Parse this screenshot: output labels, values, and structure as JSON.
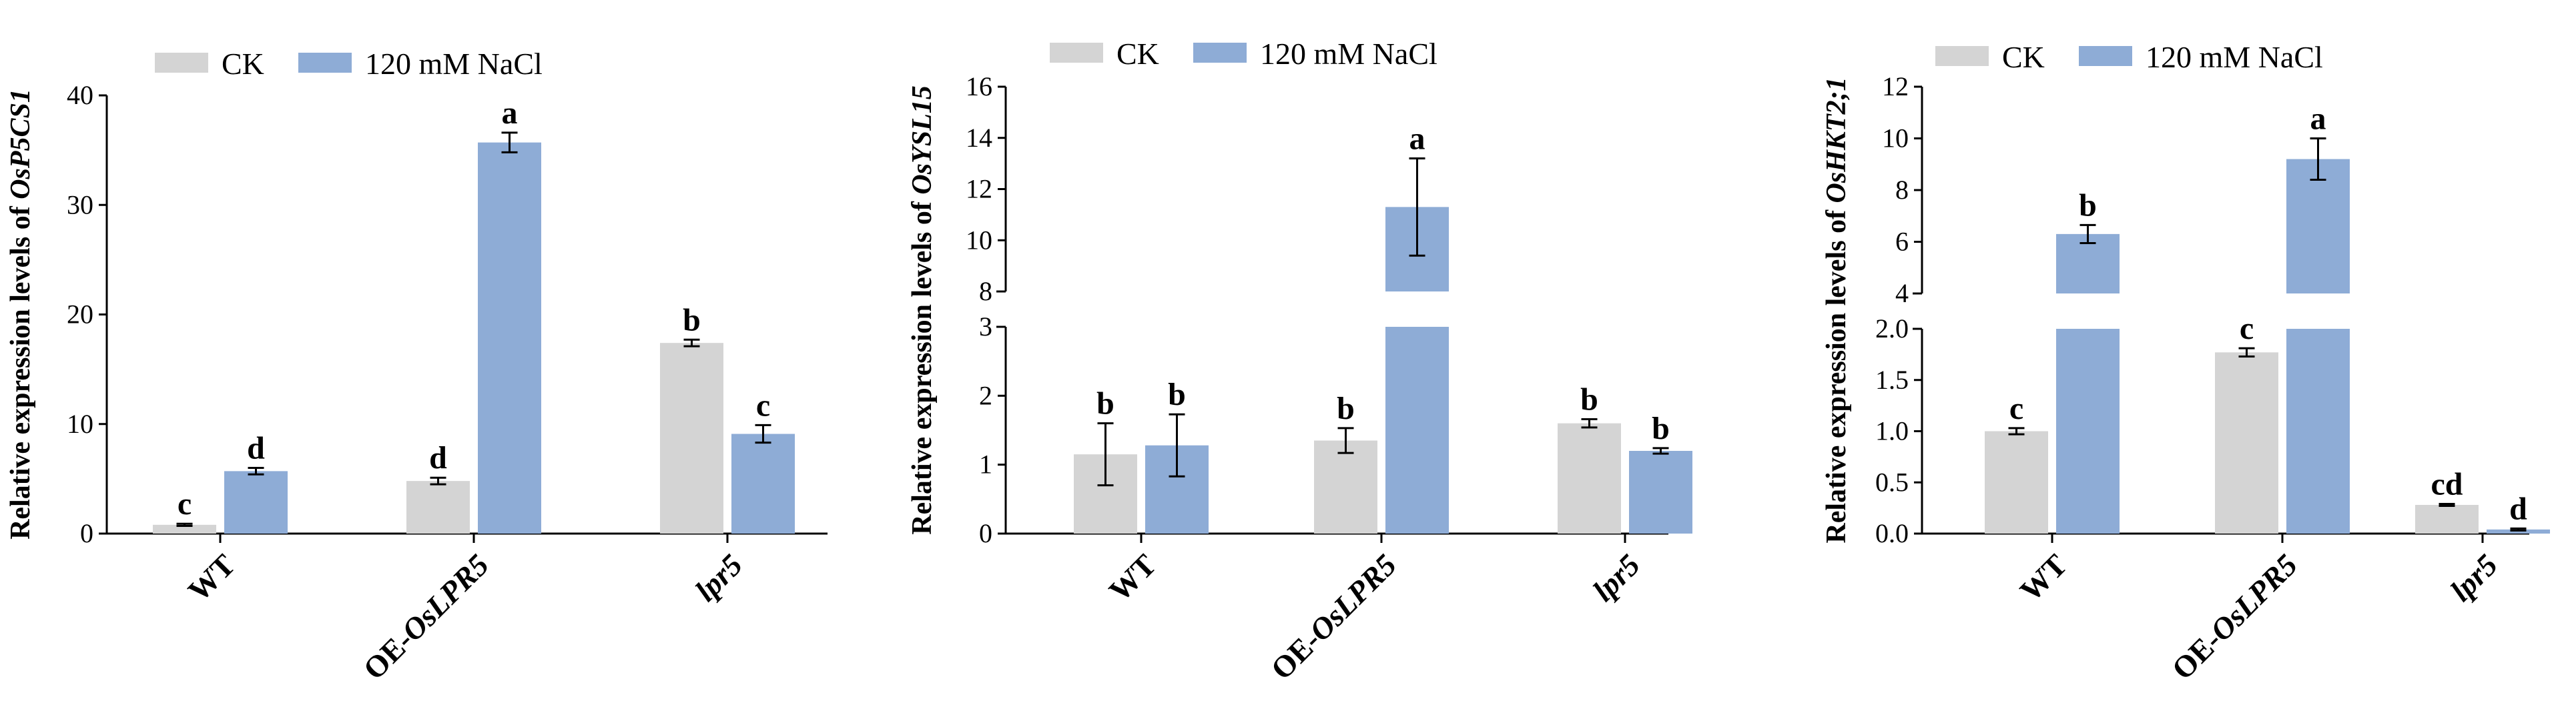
{
  "colors": {
    "ck": "#d4d4d4",
    "nacl": "#8eacd6"
  },
  "legend": [
    "CK",
    "120 mM NaCl"
  ],
  "chart_data": [
    {
      "type": "bar",
      "ylabel_prefix": "Relative expression levels of ",
      "gene": "OsP5CS1",
      "ylim": [
        0,
        40
      ],
      "yticks": [
        0,
        10,
        20,
        30,
        40
      ],
      "categories": [
        {
          "plain": "WT",
          "italic": ""
        },
        {
          "plain": "OE-",
          "italic": "OsLPR5"
        },
        {
          "plain": "",
          "italic": "lpr5"
        }
      ],
      "series": [
        {
          "name": "CK",
          "values": [
            0.8,
            4.8,
            17.4
          ],
          "errors": [
            0.1,
            0.3,
            0.3
          ],
          "letters": [
            "c",
            "d",
            "b"
          ]
        },
        {
          "name": "120 mM NaCl",
          "values": [
            5.7,
            35.7,
            9.1
          ],
          "errors": [
            0.3,
            0.9,
            0.8
          ],
          "letters": [
            "d",
            "a",
            "c"
          ]
        }
      ]
    },
    {
      "type": "bar",
      "ylabel_prefix": "Relative expression levels of ",
      "gene": "OsYSL15",
      "broken_axis": {
        "lower": [
          0,
          3
        ],
        "upper": [
          8,
          16
        ]
      },
      "yticks_lower": [
        0,
        1,
        2,
        3
      ],
      "yticks_upper": [
        8,
        10,
        12,
        14,
        16
      ],
      "categories": [
        {
          "plain": "WT",
          "italic": ""
        },
        {
          "plain": "OE-",
          "italic": "OsLPR5"
        },
        {
          "plain": "",
          "italic": "lpr5"
        }
      ],
      "series": [
        {
          "name": "CK",
          "values": [
            1.15,
            1.35,
            1.6
          ],
          "errors": [
            0.45,
            0.18,
            0.06
          ],
          "letters": [
            "b",
            "b",
            "b"
          ]
        },
        {
          "name": "120 mM NaCl",
          "values": [
            1.28,
            11.3,
            1.2
          ],
          "errors": [
            0.45,
            1.9,
            0.04
          ],
          "letters": [
            "b",
            "a",
            "b"
          ]
        }
      ]
    },
    {
      "type": "bar",
      "ylabel_prefix": "Relative expression levels of ",
      "gene": "OsHKT2;1",
      "broken_axis": {
        "lower": [
          0,
          2
        ],
        "upper": [
          4,
          12
        ]
      },
      "yticks_lower": [
        "0.0",
        "0.5",
        "1.0",
        "1.5",
        "2.0"
      ],
      "yticks_upper": [
        4,
        6,
        8,
        10,
        12
      ],
      "categories": [
        {
          "plain": "WT",
          "italic": ""
        },
        {
          "plain": "OE-",
          "italic": "OsLPR5"
        },
        {
          "plain": "",
          "italic": "lpr5"
        }
      ],
      "series": [
        {
          "name": "CK",
          "values": [
            1.0,
            1.77,
            0.28
          ],
          "errors": [
            0.03,
            0.04,
            0.01
          ],
          "letters": [
            "c",
            "c",
            "cd"
          ]
        },
        {
          "name": "120 mM NaCl",
          "values": [
            6.3,
            9.2,
            0.04
          ],
          "errors": [
            0.35,
            0.8,
            0.01
          ],
          "letters": [
            "b",
            "a",
            "d"
          ]
        }
      ]
    }
  ]
}
